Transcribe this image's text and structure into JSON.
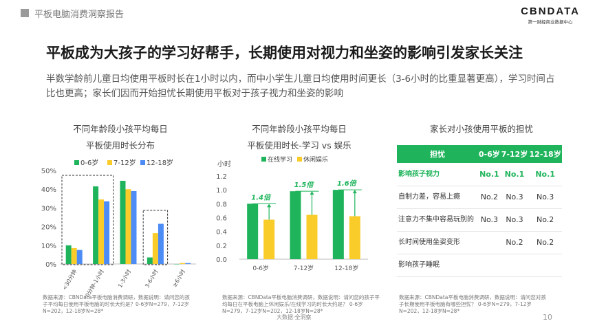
{
  "header": {
    "section": "平板电脑消费洞察报告",
    "logo": "CBNDATA",
    "logo_sub": "第一财经商业数据中心"
  },
  "title": "平板成为大孩子的学习好帮手，长期使用对视力和坐姿的影响引发家长关注",
  "subtitle": "半数学龄前儿童日均使用平板时长在1小时以内，而中小学生儿童日均使用时间更长（3-6小时的比重显著更高），学习时间占比也更高；家长们因而开始担忧长期使用平板对于孩子视力和坐姿的影响",
  "chart1_title": [
    "不同年龄段小孩平均每日",
    "平板使用时长分布"
  ],
  "chart2_title": [
    "不同年龄段小孩平均每日",
    "平板使用时长-学习 vs 娱乐"
  ],
  "chart3_title": "家长对小孩使用平板的担忧",
  "chart_data": [
    {
      "type": "bar",
      "categories": [
        "<30分钟",
        "30分钟-1小时",
        "1-3小时",
        "3-6小时",
        "≥6小时"
      ],
      "series": [
        {
          "name": "0-6岁",
          "values": [
            10,
            41.5,
            44.5,
            3.5,
            0
          ]
        },
        {
          "name": "7-12岁",
          "values": [
            8.5,
            34.5,
            40,
            16.5,
            0.5
          ]
        },
        {
          "name": "12-18岁",
          "values": [
            7.5,
            33.5,
            39,
            21.5,
            0.5
          ]
        }
      ],
      "ylim": [
        0,
        50
      ],
      "yticks": [
        "0%",
        "10%",
        "20%",
        "30%",
        "40%",
        "50%"
      ],
      "colors": [
        "#1fb45b",
        "#f9cc2a",
        "#4d8cf5"
      ],
      "legend": "top"
    },
    {
      "type": "bar",
      "categories": [
        "0-6岁",
        "7-12岁",
        "12-18岁"
      ],
      "series": [
        {
          "name": "在线学习",
          "values": [
            0.8,
            0.98,
            1.0
          ]
        },
        {
          "name": "休闲娱乐",
          "values": [
            0.57,
            0.64,
            0.62
          ]
        }
      ],
      "ylabel": "小时",
      "ylim": [
        0,
        1.2
      ],
      "yticks": [
        "0.0",
        "0.2",
        "0.4",
        "0.6",
        "0.8",
        "1.0",
        "1.2"
      ],
      "annotations": [
        "1.4倍",
        "1.5倍",
        "1.6倍"
      ],
      "colors": [
        "#1fb45b",
        "#f9cc2a"
      ],
      "legend": "top"
    },
    {
      "type": "table",
      "columns": [
        "担忧",
        "0-6岁",
        "7-12岁",
        "12-18岁"
      ],
      "rows": [
        [
          "影响孩子视力",
          "No.1",
          "No.1",
          "No.1"
        ],
        [
          "自制力差，容易上瘾",
          "No.2",
          "No.3",
          "No.3"
        ],
        [
          "注意力不集中容易玩别的",
          "No.3",
          "No.3",
          "No.2"
        ],
        [
          "长时间使用坐姿变形",
          "",
          "No.2",
          "No.2"
        ],
        [
          "影响孩子睡眠",
          "",
          "",
          ""
        ]
      ]
    }
  ],
  "sources": {
    "s1": "数据来源：CBNData平板电脑消费调研，数据说明：请问您的孩子平均每日使用平板电脑的时长大约是？0-6岁N=279，7-12岁N=202，12-18岁N=28*",
    "s2": "数据来源：CBNData平板电脑消费调研，数据说明：请问您的孩子平均每日在平板电脑上休闲娱乐/在线学习的时长大约是？ 0-6岁N=279，7-12岁N=202，12-18岁N=28*",
    "s3": "数据来源：CBNData平板电脑消费调研，数据说明：请问您对孩子长期使用平板电脑有哪些担忧？ 0-6岁N=279，7-12岁N=202，12-18岁N=28*"
  },
  "footer": "大数据·全洞察",
  "page": "10"
}
